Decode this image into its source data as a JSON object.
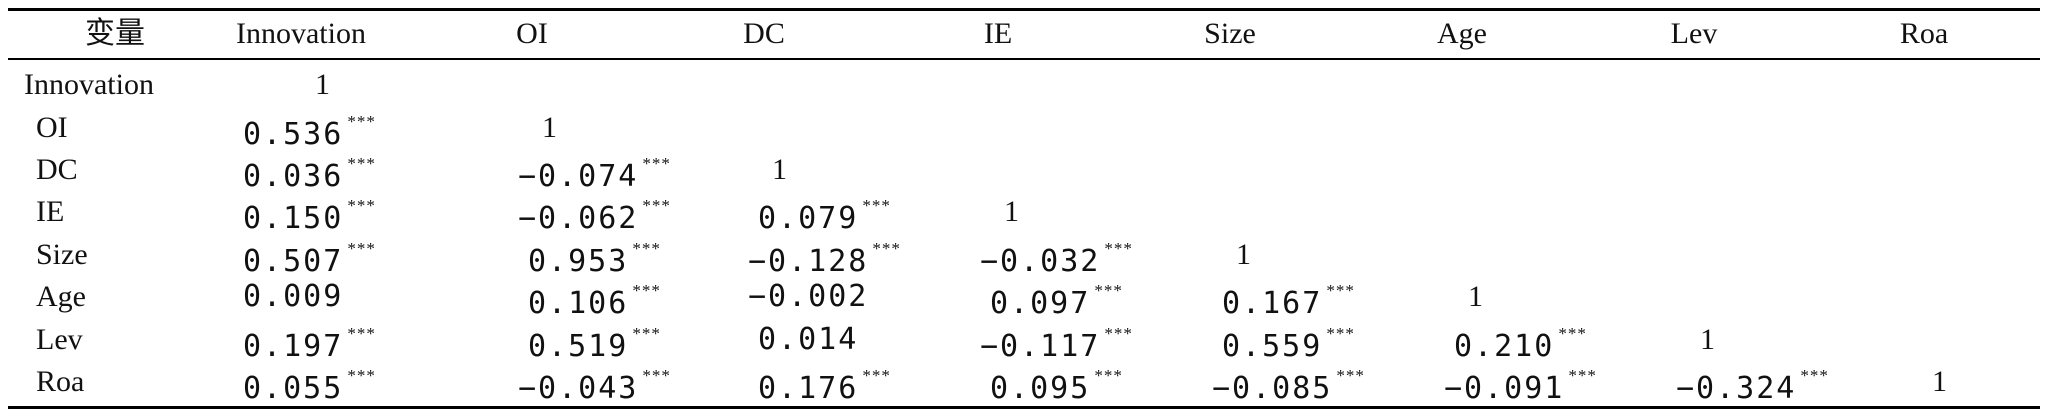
{
  "table": {
    "headers": [
      "变量",
      "Innovation",
      "OI",
      "DC",
      "IE",
      "Size",
      "Age",
      "Lev",
      "Roa"
    ],
    "rows": [
      {
        "label": "Innovation",
        "cells": [
          [
            "1",
            ""
          ]
        ]
      },
      {
        "label": "OI",
        "cells": [
          [
            "0.536",
            "***"
          ],
          [
            "1",
            ""
          ]
        ]
      },
      {
        "label": "DC",
        "cells": [
          [
            "0.036",
            "***"
          ],
          [
            "−0.074",
            "***"
          ],
          [
            "1",
            ""
          ]
        ]
      },
      {
        "label": "IE",
        "cells": [
          [
            "0.150",
            "***"
          ],
          [
            "−0.062",
            "***"
          ],
          [
            "0.079",
            "***"
          ],
          [
            "1",
            ""
          ]
        ]
      },
      {
        "label": "Size",
        "cells": [
          [
            "0.507",
            "***"
          ],
          [
            "0.953",
            "***"
          ],
          [
            "−0.128",
            "***"
          ],
          [
            "−0.032",
            "***"
          ],
          [
            "1",
            ""
          ]
        ]
      },
      {
        "label": "Age",
        "cells": [
          [
            "0.009",
            ""
          ],
          [
            "0.106",
            "***"
          ],
          [
            "−0.002",
            ""
          ],
          [
            "0.097",
            "***"
          ],
          [
            "0.167",
            "***"
          ],
          [
            "1",
            ""
          ]
        ]
      },
      {
        "label": "Lev",
        "cells": [
          [
            "0.197",
            "***"
          ],
          [
            "0.519",
            "***"
          ],
          [
            "0.014",
            ""
          ],
          [
            "−0.117",
            "***"
          ],
          [
            "0.559",
            "***"
          ],
          [
            "0.210",
            "***"
          ],
          [
            "1",
            ""
          ]
        ]
      },
      {
        "label": "Roa",
        "cells": [
          [
            "0.055",
            "***"
          ],
          [
            "−0.043",
            "***"
          ],
          [
            "0.176",
            "***"
          ],
          [
            "0.095",
            "***"
          ],
          [
            "−0.085",
            "***"
          ],
          [
            "−0.091",
            "***"
          ],
          [
            "−0.324",
            "***"
          ],
          [
            "1",
            ""
          ]
        ]
      }
    ]
  }
}
